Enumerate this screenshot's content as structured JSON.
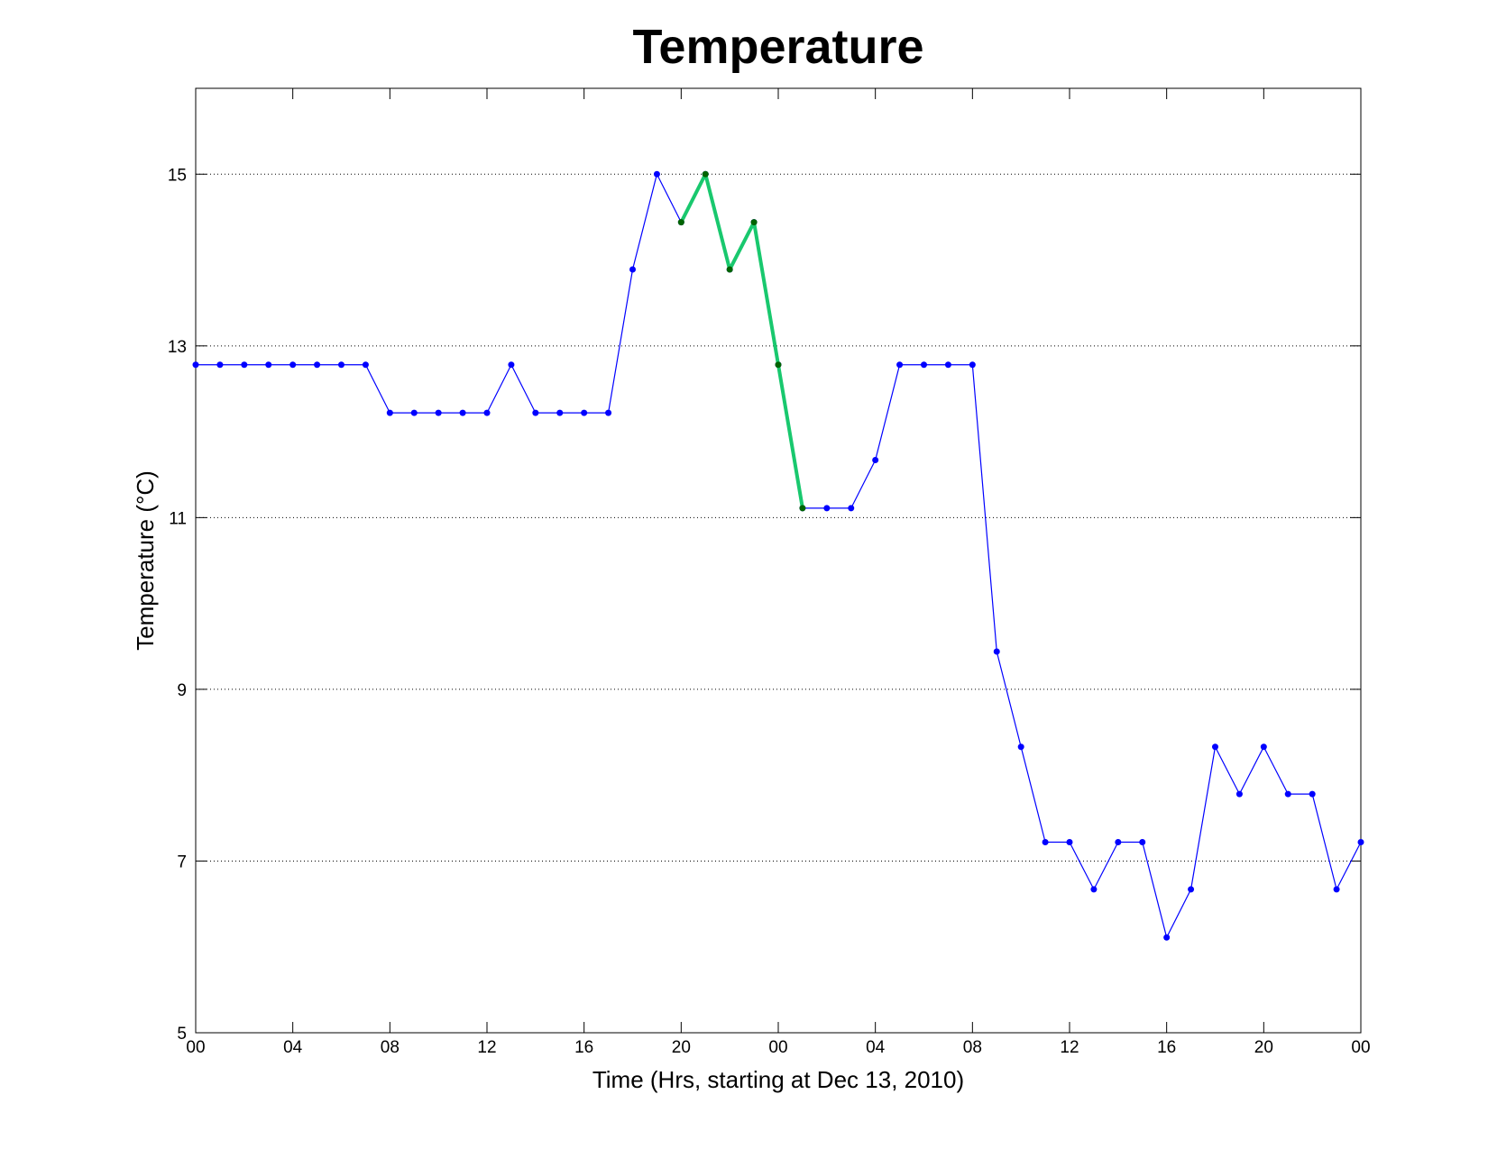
{
  "chart_data": {
    "type": "line",
    "title": "Temperature",
    "x_label": "Time (Hrs, starting at Dec 13, 2010)",
    "y_label": "Temperature (°C)",
    "x": [
      0,
      1,
      2,
      3,
      4,
      5,
      6,
      7,
      8,
      9,
      10,
      11,
      12,
      13,
      14,
      15,
      16,
      17,
      18,
      19,
      20,
      21,
      22,
      23,
      24,
      25,
      26,
      27,
      28,
      29,
      30,
      31,
      32,
      33,
      34,
      35,
      36,
      37,
      38,
      39,
      40,
      41,
      42,
      43,
      44,
      45,
      46,
      47,
      48
    ],
    "series": [
      {
        "color": "#0000ff",
        "marker_color": "#0000ff",
        "line_width": 1.2,
        "values": [
          12.78,
          12.78,
          12.78,
          12.78,
          12.78,
          12.78,
          12.78,
          12.78,
          12.22,
          12.22,
          12.22,
          12.22,
          12.22,
          12.78,
          12.22,
          12.22,
          12.22,
          12.22,
          13.89,
          15,
          14.44,
          15,
          13.89,
          14.44,
          12.78,
          11.11,
          11.11,
          11.11,
          11.67,
          12.78,
          12.78,
          12.78,
          12.78,
          9.44,
          8.33,
          7.22,
          7.22,
          6.67,
          7.22,
          7.22,
          6.11,
          6.67,
          8.33,
          7.78,
          8.33,
          7.78,
          7.78,
          6.67,
          7.22
        ]
      },
      {
        "color": "#19c86e",
        "marker_color": "#006400",
        "line_width": 4,
        "values": [
          null,
          null,
          null,
          null,
          null,
          null,
          null,
          null,
          null,
          null,
          null,
          null,
          null,
          null,
          null,
          null,
          null,
          null,
          null,
          null,
          14.44,
          15,
          13.89,
          14.44,
          12.78,
          11.11,
          null,
          null,
          null,
          null,
          null,
          null,
          null,
          null,
          null,
          null,
          null,
          null,
          null,
          null,
          null,
          null,
          null,
          null,
          null,
          null,
          null,
          null,
          null
        ]
      }
    ],
    "xlim": [
      0,
      48
    ],
    "xticks": [
      {
        "value": 0,
        "label": "00"
      },
      {
        "value": 4,
        "label": "04"
      },
      {
        "value": 8,
        "label": "08"
      },
      {
        "value": 12,
        "label": "12"
      },
      {
        "value": 16,
        "label": "16"
      },
      {
        "value": 20,
        "label": "20"
      },
      {
        "value": 24,
        "label": "00"
      },
      {
        "value": 28,
        "label": "04"
      },
      {
        "value": 32,
        "label": "08"
      },
      {
        "value": 36,
        "label": "12"
      },
      {
        "value": 40,
        "label": "16"
      },
      {
        "value": 44,
        "label": "20"
      },
      {
        "value": 48,
        "label": "00"
      }
    ],
    "ylim": [
      5,
      16
    ],
    "yticks": [
      5,
      7,
      9,
      11,
      13,
      15
    ],
    "grid": "y"
  }
}
